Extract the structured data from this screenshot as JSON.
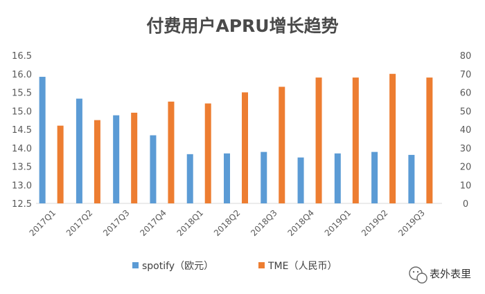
{
  "chart_data": {
    "type": "bar",
    "title": "付费用户APRU增长趋势",
    "categories": [
      "2017Q1",
      "2017Q2",
      "2017Q3",
      "2017Q4",
      "2018Q1",
      "2018Q2",
      "2018Q3",
      "2018Q4",
      "2019Q1",
      "2019Q2",
      "2019Q3"
    ],
    "series": [
      {
        "name": "spotify（欧元）",
        "axis": "left",
        "color": "#5b9bd5",
        "values": [
          15.92,
          15.33,
          14.88,
          14.34,
          13.83,
          13.85,
          13.89,
          13.74,
          13.85,
          13.89,
          13.81
        ]
      },
      {
        "name": "TME（人民币）",
        "axis": "right",
        "color": "#ed7d31",
        "values": [
          42,
          45,
          49,
          55,
          54,
          60,
          63,
          68,
          68,
          70,
          68
        ]
      }
    ],
    "y_left": {
      "ylim": [
        12.5,
        16.5
      ],
      "ticks": [
        "12.5",
        "13.0",
        "13.5",
        "14.0",
        "14.5",
        "15.0",
        "15.5",
        "16.0",
        "16.5"
      ]
    },
    "y_right": {
      "ylim": [
        0,
        80
      ],
      "ticks": [
        "0",
        "10",
        "20",
        "30",
        "40",
        "50",
        "60",
        "70",
        "80"
      ]
    },
    "grid": false,
    "legend": "bottom"
  },
  "watermark": {
    "text": "表外表里"
  }
}
